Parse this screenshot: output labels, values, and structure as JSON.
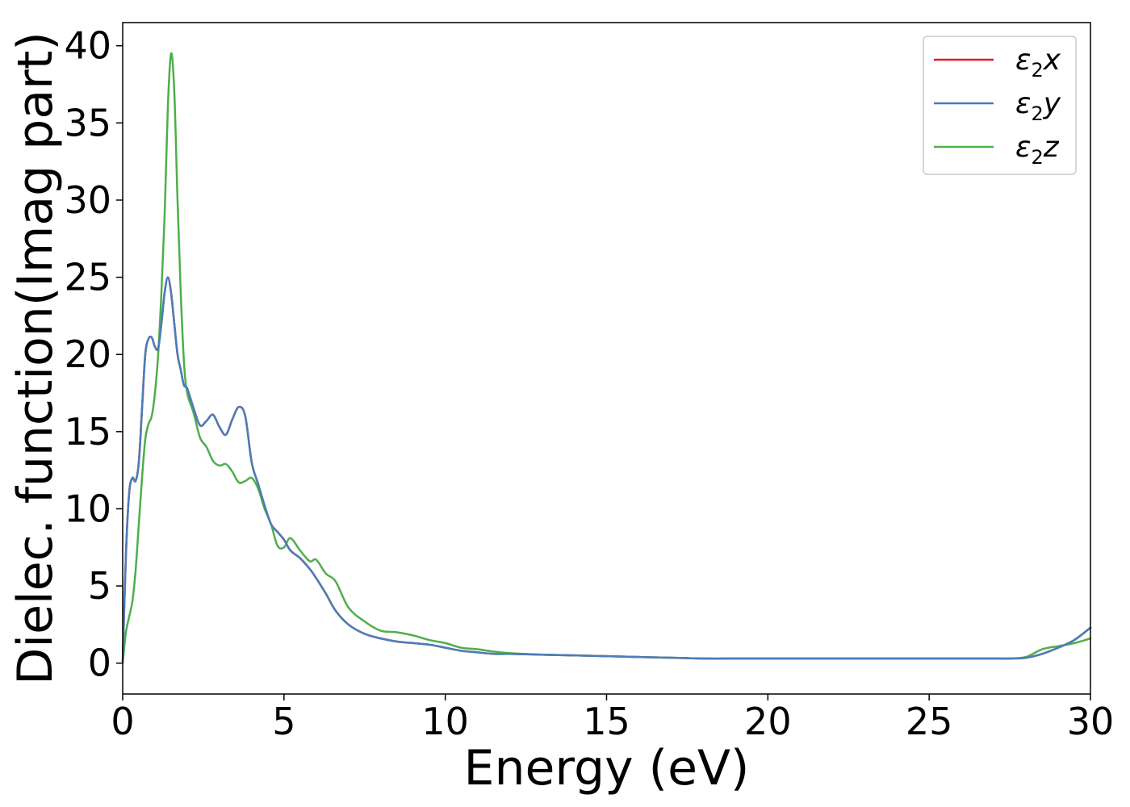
{
  "chart_data": {
    "type": "line",
    "title": "",
    "xlabel": "Energy (eV)",
    "ylabel": "Dielec. function(Imag part)",
    "xlim": [
      0,
      30
    ],
    "ylim": [
      -2,
      41.5
    ],
    "xticks": [
      0,
      5,
      10,
      15,
      20,
      25,
      30
    ],
    "yticks": [
      0,
      5,
      10,
      15,
      20,
      25,
      30,
      35,
      40
    ],
    "grid": false,
    "legend_position": "top-right",
    "series": [
      {
        "name": "ε₂x",
        "legend_base": "ε",
        "legend_sub": "2",
        "legend_suffix": "x",
        "color": "#e41a1c",
        "x": [
          0,
          0.1,
          0.2,
          0.3,
          0.4,
          0.5,
          0.6,
          0.7,
          0.8,
          0.9,
          1.0,
          1.1,
          1.2,
          1.3,
          1.4,
          1.5,
          1.6,
          1.7,
          1.8,
          1.9,
          2.0,
          2.2,
          2.4,
          2.6,
          2.8,
          3.0,
          3.2,
          3.4,
          3.6,
          3.8,
          4.0,
          4.2,
          4.4,
          4.6,
          4.8,
          5.0,
          5.2,
          5.5,
          5.8,
          6.0,
          6.3,
          6.6,
          7.0,
          7.5,
          8.0,
          8.5,
          9.0,
          9.5,
          10,
          10.5,
          11,
          11.5,
          12,
          13,
          14,
          15,
          16,
          17,
          18,
          19,
          20,
          21,
          22,
          23,
          24,
          25,
          26,
          27,
          27.5,
          28,
          28.5,
          29,
          29.5,
          30
        ],
        "values": [
          0,
          7,
          11,
          12,
          11.8,
          13,
          16.5,
          20,
          21,
          21.1,
          20.5,
          20.4,
          22,
          24,
          25,
          24,
          22,
          20,
          19,
          18,
          17.8,
          16.5,
          15.4,
          15.7,
          16.1,
          15.3,
          14.8,
          15.8,
          16.6,
          16,
          13,
          11.6,
          10.2,
          9,
          8.5,
          8,
          7.3,
          6.8,
          6.1,
          5.5,
          4.5,
          3.4,
          2.5,
          1.9,
          1.6,
          1.4,
          1.3,
          1.2,
          1.0,
          0.8,
          0.7,
          0.6,
          0.6,
          0.55,
          0.5,
          0.45,
          0.4,
          0.35,
          0.3,
          0.3,
          0.3,
          0.3,
          0.3,
          0.3,
          0.3,
          0.3,
          0.3,
          0.3,
          0.3,
          0.35,
          0.6,
          1.0,
          1.5,
          2.3
        ]
      },
      {
        "name": "ε₂y",
        "legend_base": "ε",
        "legend_sub": "2",
        "legend_suffix": "y",
        "color": "#4a7dba",
        "x": [
          0,
          0.1,
          0.2,
          0.3,
          0.4,
          0.5,
          0.6,
          0.7,
          0.8,
          0.9,
          1.0,
          1.1,
          1.2,
          1.3,
          1.4,
          1.5,
          1.6,
          1.7,
          1.8,
          1.9,
          2.0,
          2.2,
          2.4,
          2.6,
          2.8,
          3.0,
          3.2,
          3.4,
          3.6,
          3.8,
          4.0,
          4.2,
          4.4,
          4.6,
          4.8,
          5.0,
          5.2,
          5.5,
          5.8,
          6.0,
          6.3,
          6.6,
          7.0,
          7.5,
          8.0,
          8.5,
          9.0,
          9.5,
          10,
          10.5,
          11,
          11.5,
          12,
          13,
          14,
          15,
          16,
          17,
          18,
          19,
          20,
          21,
          22,
          23,
          24,
          25,
          26,
          27,
          27.5,
          28,
          28.5,
          29,
          29.5,
          30
        ],
        "values": [
          0,
          7,
          11,
          12,
          11.8,
          13,
          16.5,
          20,
          21,
          21.1,
          20.5,
          20.4,
          22,
          24,
          25,
          24,
          22,
          20,
          19,
          18,
          17.8,
          16.5,
          15.4,
          15.7,
          16.1,
          15.3,
          14.8,
          15.8,
          16.6,
          16,
          13,
          11.6,
          10.2,
          9,
          8.5,
          8,
          7.3,
          6.8,
          6.1,
          5.5,
          4.5,
          3.4,
          2.5,
          1.9,
          1.6,
          1.4,
          1.3,
          1.2,
          1.0,
          0.8,
          0.7,
          0.6,
          0.6,
          0.55,
          0.5,
          0.45,
          0.4,
          0.35,
          0.3,
          0.3,
          0.3,
          0.3,
          0.3,
          0.3,
          0.3,
          0.3,
          0.3,
          0.3,
          0.3,
          0.35,
          0.6,
          1.0,
          1.5,
          2.3
        ]
      },
      {
        "name": "ε₂z",
        "legend_base": "ε",
        "legend_sub": "2",
        "legend_suffix": "z",
        "color": "#4daf4a",
        "x": [
          0,
          0.1,
          0.2,
          0.3,
          0.4,
          0.5,
          0.6,
          0.7,
          0.8,
          0.9,
          1.0,
          1.1,
          1.2,
          1.3,
          1.4,
          1.5,
          1.6,
          1.7,
          1.8,
          1.9,
          2.0,
          2.2,
          2.4,
          2.6,
          2.8,
          3.0,
          3.2,
          3.4,
          3.6,
          3.8,
          4.0,
          4.2,
          4.4,
          4.6,
          4.8,
          5.0,
          5.2,
          5.5,
          5.8,
          6.0,
          6.3,
          6.6,
          7.0,
          7.5,
          8.0,
          8.5,
          9.0,
          9.5,
          10,
          10.5,
          11,
          11.5,
          12,
          13,
          14,
          15,
          16,
          17,
          18,
          19,
          20,
          21,
          22,
          23,
          24,
          25,
          26,
          27,
          27.5,
          28,
          28.5,
          29,
          29.5,
          30
        ],
        "values": [
          0,
          2,
          3,
          4,
          6,
          9,
          12,
          14.5,
          15.5,
          16,
          17.5,
          20,
          24,
          29,
          36,
          39.5,
          37,
          30,
          24,
          19.5,
          17.5,
          16.2,
          14.6,
          14,
          13.1,
          12.8,
          12.9,
          12.4,
          11.7,
          11.8,
          12,
          11.3,
          10,
          9,
          7.6,
          7.5,
          8.1,
          7.3,
          6.6,
          6.7,
          5.8,
          5.3,
          3.6,
          2.7,
          2.1,
          2.0,
          1.8,
          1.5,
          1.3,
          1.0,
          0.9,
          0.75,
          0.65,
          0.55,
          0.5,
          0.45,
          0.4,
          0.35,
          0.3,
          0.3,
          0.3,
          0.3,
          0.3,
          0.3,
          0.3,
          0.3,
          0.3,
          0.3,
          0.3,
          0.4,
          0.9,
          1.1,
          1.3,
          1.6
        ]
      }
    ]
  }
}
